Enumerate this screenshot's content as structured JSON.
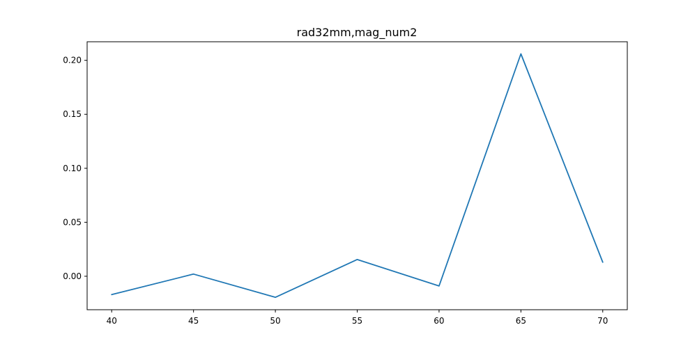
{
  "chart_data": {
    "type": "line",
    "title": "rad32mm,mag_num2",
    "xlabel": "",
    "ylabel": "",
    "x": [
      40,
      45,
      50,
      55,
      60,
      65,
      70
    ],
    "series": [
      {
        "values": [
          -0.017,
          0.002,
          -0.0195,
          0.0155,
          -0.009,
          0.206,
          0.013
        ]
      }
    ],
    "xlim": [
      38.5,
      71.5
    ],
    "ylim": [
      -0.031,
      0.2172
    ],
    "xticks": [
      40,
      45,
      50,
      55,
      60,
      65,
      70
    ],
    "yticks": [
      0.0,
      0.05,
      0.1,
      0.15,
      0.2
    ],
    "ytick_labels": [
      "0.00",
      "0.05",
      "0.10",
      "0.15",
      "0.20"
    ],
    "grid": false,
    "line_color": "#1f77b4"
  }
}
